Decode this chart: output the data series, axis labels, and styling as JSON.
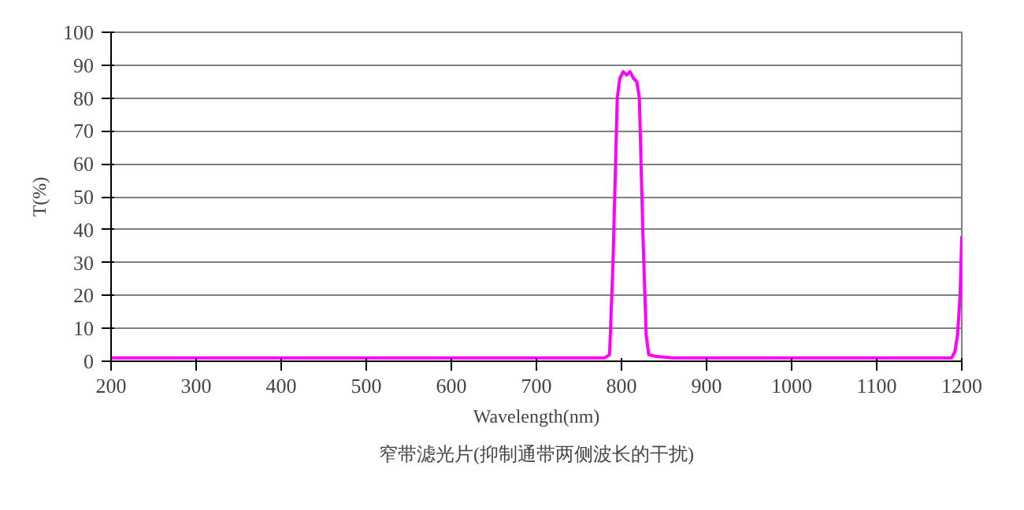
{
  "chart_data": {
    "type": "line",
    "xlabel": "Wavelength(nm)",
    "ylabel": "T(%)",
    "annotations": [
      "窄带滤光片(抑制通带两侧波长的干扰)"
    ],
    "x": [
      200,
      300,
      400,
      500,
      600,
      700,
      760,
      780,
      786,
      790,
      795,
      798,
      802,
      806,
      810,
      814,
      818,
      821,
      825,
      829,
      832,
      840,
      860,
      900,
      1000,
      1100,
      1180,
      1188,
      1192,
      1195,
      1198,
      1200
    ],
    "series": [
      {
        "color": "#ff00ff",
        "values": [
          1,
          1,
          1,
          1,
          1,
          1,
          1,
          1,
          2,
          30,
          80,
          86,
          88,
          87,
          88,
          86,
          85,
          80,
          40,
          8,
          2,
          1.5,
          1,
          1,
          1,
          1,
          1,
          1,
          3,
          8,
          20,
          38
        ]
      }
    ],
    "xlim": [
      200,
      1200
    ],
    "ylim": [
      0,
      100
    ],
    "xticks": [
      200,
      300,
      400,
      500,
      600,
      700,
      800,
      900,
      1000,
      1100,
      1200
    ],
    "yticks": [
      0,
      10,
      20,
      30,
      40,
      50,
      60,
      70,
      80,
      90,
      100
    ],
    "grid": "y",
    "marker": "none",
    "line_style": "solid"
  }
}
